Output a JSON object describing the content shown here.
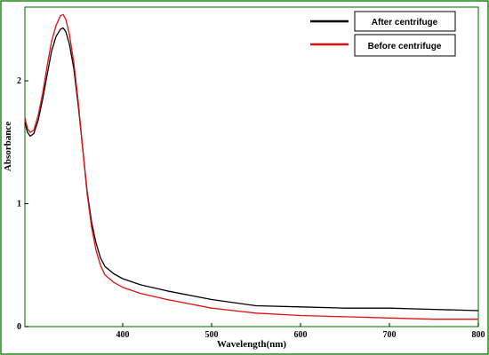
{
  "chart_data": {
    "type": "line",
    "title": "",
    "xlabel": "Wavelength(nm)",
    "ylabel": "Absorbance",
    "xlim": [
      290,
      800
    ],
    "ylim": [
      0,
      2.6
    ],
    "x_ticks": [
      400,
      500,
      600,
      700,
      800
    ],
    "y_ticks": [
      0,
      1,
      2
    ],
    "frame_color": "#1a8a1a",
    "legend_position": "top-right",
    "series": [
      {
        "name": "After centrifuge",
        "color": "#000000",
        "x": [
          290,
          293,
          296,
          300,
          305,
          310,
          315,
          320,
          325,
          330,
          333,
          336,
          340,
          345,
          350,
          355,
          360,
          365,
          370,
          375,
          380,
          390,
          400,
          420,
          450,
          500,
          550,
          600,
          650,
          700,
          750,
          800
        ],
        "y": [
          1.66,
          1.58,
          1.55,
          1.57,
          1.68,
          1.85,
          2.05,
          2.24,
          2.36,
          2.42,
          2.43,
          2.4,
          2.3,
          2.1,
          1.8,
          1.45,
          1.1,
          0.85,
          0.68,
          0.56,
          0.49,
          0.43,
          0.39,
          0.34,
          0.29,
          0.22,
          0.17,
          0.16,
          0.15,
          0.15,
          0.14,
          0.13
        ]
      },
      {
        "name": "Before centrifuge",
        "color": "#e01010",
        "x": [
          290,
          293,
          296,
          300,
          305,
          310,
          315,
          320,
          325,
          330,
          333,
          336,
          340,
          345,
          350,
          355,
          360,
          365,
          370,
          375,
          380,
          390,
          400,
          420,
          450,
          500,
          550,
          600,
          650,
          700,
          750,
          800
        ],
        "y": [
          1.7,
          1.61,
          1.58,
          1.6,
          1.72,
          1.9,
          2.12,
          2.32,
          2.45,
          2.53,
          2.54,
          2.5,
          2.38,
          2.15,
          1.83,
          1.45,
          1.08,
          0.81,
          0.62,
          0.5,
          0.42,
          0.36,
          0.32,
          0.27,
          0.22,
          0.15,
          0.11,
          0.09,
          0.08,
          0.07,
          0.06,
          0.06
        ]
      }
    ]
  }
}
